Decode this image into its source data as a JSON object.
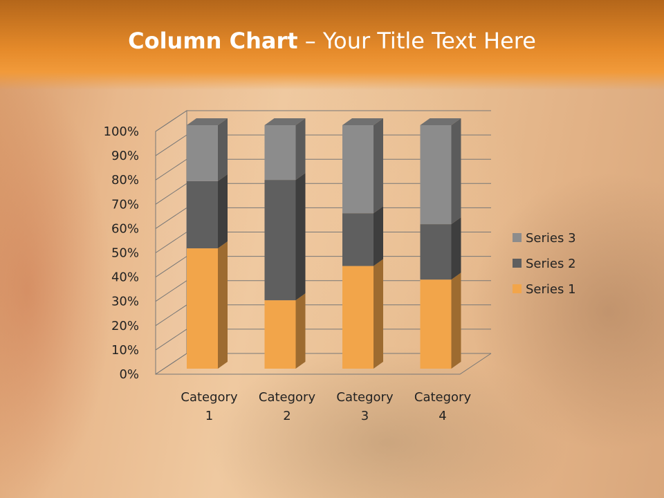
{
  "slide": {
    "title_bold": "Column Chart",
    "title_rest": " – Your Title Text Here"
  },
  "chart_data": {
    "type": "bar",
    "stacking": "percent",
    "three_d": true,
    "categories": [
      "Category 1",
      "Category 2",
      "Category 3",
      "Category 4"
    ],
    "series": [
      {
        "name": "Series 1",
        "values": [
          4.3,
          2.5,
          3.5,
          4.5
        ],
        "color": "#f2a54a"
      },
      {
        "name": "Series 2",
        "values": [
          2.4,
          4.4,
          1.8,
          2.8
        ],
        "color": "#5f5f5f"
      },
      {
        "name": "Series 3",
        "values": [
          2,
          2,
          3,
          5
        ],
        "color": "#8c8c8c"
      }
    ],
    "yticks": [
      "0%",
      "10%",
      "20%",
      "30%",
      "40%",
      "50%",
      "60%",
      "70%",
      "80%",
      "90%",
      "100%"
    ],
    "ylim": [
      0,
      100
    ],
    "grid": true,
    "legend": "right"
  }
}
